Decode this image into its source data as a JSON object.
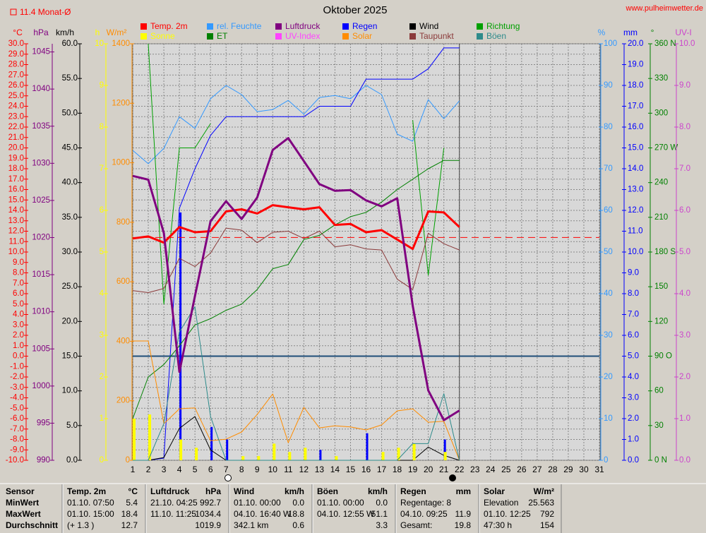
{
  "title": "Oktober 2025",
  "site": "www.pulheimwetter.de",
  "chart_data": {
    "type": "line",
    "average": {
      "value": 11.4,
      "label": "11.4 Monat-Ø",
      "axis": "°C",
      "color": "#ff0000"
    },
    "x": [
      1,
      2,
      3,
      4,
      5,
      6,
      7,
      8,
      9,
      10,
      11,
      12,
      13,
      14,
      15,
      16,
      17,
      18,
      19,
      20,
      21,
      22
    ],
    "xlim": [
      1,
      31
    ],
    "xticks": [
      1,
      2,
      3,
      4,
      5,
      6,
      7,
      8,
      9,
      10,
      11,
      12,
      13,
      14,
      15,
      16,
      17,
      18,
      19,
      20,
      21,
      22,
      23,
      24,
      25,
      26,
      27,
      28,
      29,
      30,
      31
    ],
    "grid": true,
    "frost_line": {
      "value": 0,
      "axis": "°C",
      "color": "#1f4e79"
    },
    "axes": [
      {
        "unit": "°C",
        "color": "#ff0000",
        "ylim": [
          -10,
          30
        ],
        "yticks": [
          {
            "value": -10,
            "label": "-10.0"
          },
          {
            "value": -9,
            "label": "-9.0"
          },
          {
            "value": -8,
            "label": "-8.0"
          },
          {
            "value": -7,
            "label": "-7.0"
          },
          {
            "value": -6,
            "label": "-6.0"
          },
          {
            "value": -5,
            "label": "-5.0"
          },
          {
            "value": -4,
            "label": "-4.0"
          },
          {
            "value": -3,
            "label": "-3.0"
          },
          {
            "value": -2,
            "label": "-2.0"
          },
          {
            "value": -1,
            "label": "-1.0"
          },
          {
            "value": 0,
            "label": "0.0"
          },
          {
            "value": 1,
            "label": "1.0"
          },
          {
            "value": 2,
            "label": "2.0"
          },
          {
            "value": 3,
            "label": "3.0"
          },
          {
            "value": 4,
            "label": "4.0"
          },
          {
            "value": 5,
            "label": "5.0"
          },
          {
            "value": 6,
            "label": "6.0"
          },
          {
            "value": 7,
            "label": "7.0"
          },
          {
            "value": 8,
            "label": "8.0"
          },
          {
            "value": 9,
            "label": "9.0"
          },
          {
            "value": 10,
            "label": "10.0"
          },
          {
            "value": 11,
            "label": "11.0"
          },
          {
            "value": 12,
            "label": "12.0"
          },
          {
            "value": 13,
            "label": "13.0"
          },
          {
            "value": 14,
            "label": "14.0"
          },
          {
            "value": 15,
            "label": "15.0"
          },
          {
            "value": 16,
            "label": "16.0"
          },
          {
            "value": 17,
            "label": "17.0"
          },
          {
            "value": 18,
            "label": "18.0"
          },
          {
            "value": 19,
            "label": "19.0"
          },
          {
            "value": 20,
            "label": "20.0"
          },
          {
            "value": 21,
            "label": "21.0"
          },
          {
            "value": 22,
            "label": "22.0"
          },
          {
            "value": 23,
            "label": "23.0"
          },
          {
            "value": 24,
            "label": "24.0"
          },
          {
            "value": 25,
            "label": "25.0"
          },
          {
            "value": 26,
            "label": "26.0"
          },
          {
            "value": 27,
            "label": "27.0"
          },
          {
            "value": 28,
            "label": "28.0"
          },
          {
            "value": 29,
            "label": "29.0"
          },
          {
            "value": 30,
            "label": "30.0"
          }
        ]
      },
      {
        "unit": "hPa",
        "color": "#800080",
        "ylim": [
          990,
          1046.1
        ],
        "yticks": [
          990,
          995,
          1000,
          1005,
          1010,
          1015,
          1020,
          1025,
          1030,
          1035,
          1040,
          1045
        ]
      },
      {
        "unit": "km/h",
        "color": "#000000",
        "ylim": [
          0,
          60
        ],
        "yticks": [
          {
            "value": 0,
            "label": "0.0"
          },
          {
            "value": 5,
            "label": "5.0"
          },
          {
            "value": 10,
            "label": "10.0"
          },
          {
            "value": 15,
            "label": "15.0"
          },
          {
            "value": 20,
            "label": "20.0"
          },
          {
            "value": 25,
            "label": "25.0"
          },
          {
            "value": 30,
            "label": "30.0"
          },
          {
            "value": 35,
            "label": "35.0"
          },
          {
            "value": 40,
            "label": "40.0"
          },
          {
            "value": 45,
            "label": "45.0"
          },
          {
            "value": 50,
            "label": "50.0"
          },
          {
            "value": 55,
            "label": "55.0"
          },
          {
            "value": 60,
            "label": "60.0"
          }
        ]
      },
      {
        "unit": "h",
        "color": "#ffff00",
        "ylim": [
          0,
          10
        ],
        "yticks": [
          0,
          1,
          2,
          3,
          4,
          5,
          6,
          7,
          8,
          9,
          10
        ]
      },
      {
        "unit": "W/m²",
        "color": "#ff8c00",
        "ylim": [
          0,
          1400
        ],
        "yticks": [
          0,
          200,
          400,
          600,
          800,
          1000,
          1200,
          1400
        ]
      },
      {
        "unit": "%",
        "color": "#3399ff",
        "ylim": [
          0,
          100
        ],
        "yticks": [
          0,
          10,
          20,
          30,
          40,
          50,
          60,
          70,
          80,
          90,
          100
        ]
      },
      {
        "unit": "mm",
        "color": "#0000ff",
        "ylim": [
          0,
          20
        ],
        "yticks": [
          {
            "value": 0,
            "label": "0.0"
          },
          {
            "value": 1,
            "label": "1.0"
          },
          {
            "value": 2,
            "label": "2.0"
          },
          {
            "value": 3,
            "label": "3.0"
          },
          {
            "value": 4,
            "label": "4.0"
          },
          {
            "value": 5,
            "label": "5.0"
          },
          {
            "value": 6,
            "label": "6.0"
          },
          {
            "value": 7,
            "label": "7.0"
          },
          {
            "value": 8,
            "label": "8.0"
          },
          {
            "value": 9,
            "label": "9.0"
          },
          {
            "value": 10,
            "label": "10.0"
          },
          {
            "value": 11,
            "label": "11.0"
          },
          {
            "value": 12,
            "label": "12.0"
          },
          {
            "value": 13,
            "label": "13.0"
          },
          {
            "value": 14,
            "label": "14.0"
          },
          {
            "value": 15,
            "label": "15.0"
          },
          {
            "value": 16,
            "label": "16.0"
          },
          {
            "value": 17,
            "label": "17.0"
          },
          {
            "value": 18,
            "label": "18.0"
          },
          {
            "value": 19,
            "label": "19.0"
          },
          {
            "value": 20,
            "label": "20.0"
          }
        ]
      },
      {
        "unit": "°",
        "color": "#008000",
        "ylim": [
          0,
          360
        ],
        "yticks": [
          {
            "value": 0,
            "label": "0   N"
          },
          30,
          60,
          {
            "value": 90,
            "label": "90  O"
          },
          120,
          150,
          {
            "value": 180,
            "label": "180 S"
          },
          210,
          240,
          {
            "value": 270,
            "label": "270 W"
          },
          300,
          330,
          {
            "value": 360,
            "label": "360 N"
          }
        ]
      },
      {
        "unit": "UV-I",
        "color": "#cc44cc",
        "ylim": [
          0,
          10
        ],
        "yticks": [
          {
            "value": 0,
            "label": "0.0"
          },
          {
            "value": 1,
            "label": "1.0"
          },
          {
            "value": 2,
            "label": "2.0"
          },
          {
            "value": 3,
            "label": "3.0"
          },
          {
            "value": 4,
            "label": "4.0"
          },
          {
            "value": 5,
            "label": "5.0"
          },
          {
            "value": 6,
            "label": "6.0"
          },
          {
            "value": 7,
            "label": "7.0"
          },
          {
            "value": 8,
            "label": "8.0"
          },
          {
            "value": 9,
            "label": "9.0"
          },
          {
            "value": 10,
            "label": "10.0"
          }
        ]
      }
    ],
    "series": [
      {
        "name": "Temp. 2m",
        "color": "#ff0000",
        "axis": "°C",
        "width": 3,
        "values": [
          11.3,
          11.5,
          10.9,
          12.4,
          11.9,
          12.0,
          13.9,
          14.1,
          13.7,
          14.5,
          14.3,
          14.1,
          14.3,
          12.6,
          12.7,
          11.9,
          12.1,
          11.2,
          10.3,
          13.9,
          13.8,
          12.4
        ]
      },
      {
        "name": "rel. Feuchte",
        "color": "#3399ff",
        "axis": "%",
        "values": [
          74.4,
          71.2,
          74.9,
          82.5,
          79.7,
          86.8,
          90.0,
          87.8,
          83.7,
          84.2,
          86.4,
          83.1,
          87.1,
          87.6,
          86.8,
          90.0,
          87.8,
          78.3,
          76.6,
          86.6,
          82.0,
          86.3
        ]
      },
      {
        "name": "Luftdruck",
        "color": "#800080",
        "axis": "hPa",
        "width": 3,
        "values": [
          1028.3,
          1027.8,
          1020.6,
          1001.9,
          1012.1,
          1022.2,
          1024.9,
          1022.5,
          1025.4,
          1031.8,
          1033.4,
          1030.3,
          1027.2,
          1026.3,
          1026.4,
          1025.0,
          1024.2,
          1025.3,
          1010.8,
          999.4,
          995.4,
          996.7
        ]
      },
      {
        "name": "Regen",
        "color": "#0000ff",
        "axis": "mm",
        "values": [
          0,
          0,
          0.1,
          12.1,
          14.0,
          15.6,
          16.5,
          16.5,
          16.5,
          16.5,
          16.5,
          16.5,
          17.0,
          17.0,
          17.0,
          18.3,
          18.3,
          18.3,
          18.3,
          18.8,
          19.8,
          19.8
        ],
        "daily": [
          0,
          0,
          0,
          11.9,
          0,
          1.6,
          1.0,
          0,
          0,
          0,
          0,
          0,
          0.5,
          0,
          0,
          1.3,
          0,
          0,
          0,
          0,
          1.0,
          null
        ]
      },
      {
        "name": "Wind",
        "color": "#000000",
        "axis": "km/h",
        "values": [
          0,
          0,
          0.4,
          4.6,
          6.3,
          1.5,
          0,
          0,
          0,
          0,
          0,
          0,
          0,
          0,
          0,
          0,
          0,
          0,
          0,
          1.9,
          0.7,
          0
        ]
      },
      {
        "name": "Richtung",
        "color": "#00a000",
        "axis": "°",
        "values": [
          null,
          360,
          135,
          270,
          270,
          291,
          null,
          null,
          null,
          null,
          null,
          null,
          null,
          null,
          null,
          null,
          null,
          null,
          294,
          160,
          270,
          null
        ]
      },
      {
        "name": "Sonne",
        "color": "#ffff00",
        "axis": "h",
        "kind": "bar",
        "values": [
          1.0,
          1.1,
          0,
          0.5,
          0.3,
          0,
          0,
          0.1,
          0.1,
          0.4,
          0.2,
          0.3,
          0,
          0.1,
          0,
          0,
          0.2,
          0.3,
          0.4,
          0,
          0.2,
          null
        ]
      },
      {
        "name": "ET",
        "color": "#008000",
        "axis": "mm",
        "values": [
          2.0,
          4.0,
          4.6,
          5.5,
          6.5,
          6.8,
          7.2,
          7.5,
          8.2,
          9.2,
          9.4,
          10.6,
          10.8,
          11.3,
          11.7,
          11.9,
          12.4,
          13.0,
          13.5,
          14.0,
          14.4,
          14.4
        ]
      },
      {
        "name": "UV-Index",
        "color": "#ff44ff",
        "axis": "UV-I",
        "values": [
          null,
          null,
          null,
          null,
          null,
          null,
          null,
          null,
          null,
          null,
          null,
          null,
          null,
          null,
          null,
          null,
          null,
          null,
          null,
          null,
          null,
          null
        ]
      },
      {
        "name": "Solar",
        "color": "#ff8c00",
        "axis": "W/m²",
        "values": [
          401,
          401,
          123,
          173,
          176,
          66,
          71,
          95,
          154,
          223,
          59,
          178,
          109,
          116,
          112,
          102,
          119,
          166,
          173,
          128,
          131,
          0
        ]
      },
      {
        "name": "Taupunkt",
        "color": "#8b3a3a",
        "axis": "°C",
        "values": [
          6.3,
          6.1,
          6.5,
          9.4,
          8.6,
          9.9,
          12.3,
          12.1,
          10.9,
          11.9,
          12.0,
          11.3,
          12.0,
          10.5,
          10.7,
          10.3,
          10.2,
          7.4,
          6.4,
          11.8,
          10.8,
          10.2
        ]
      },
      {
        "name": "Böen",
        "color": "#2e8b8b",
        "axis": "km/h",
        "values": [
          0,
          0,
          5.3,
          18.5,
          22.1,
          6.3,
          0,
          0,
          0,
          0,
          0,
          0,
          0,
          0,
          0,
          0,
          0,
          0,
          2.4,
          2.4,
          9.6,
          0
        ]
      }
    ]
  },
  "table": {
    "header": "Sensor",
    "row_labels": [
      "MinWert",
      "MaxWert",
      "Durchschnitt"
    ],
    "columns": [
      {
        "name": "Temp. 2m",
        "unit": "°C",
        "cells": [
          {
            "text": "01.10.  07:50",
            "value": "5.4"
          },
          {
            "text": "01.10.  15:00",
            "value": "18.4"
          },
          {
            "text": "(+ 1.3 )",
            "value": "12.7"
          }
        ]
      },
      {
        "name": "Luftdruck",
        "unit": "hPa",
        "cells": [
          {
            "text": "21.10.  04:25",
            "value": "992.7"
          },
          {
            "text": "11.10.  11:25",
            "value": "1034.4"
          },
          {
            "value": "1019.9"
          }
        ]
      },
      {
        "name": "Wind",
        "unit": "km/h",
        "cells": [
          {
            "text": "01.10.  00:00",
            "value": "0.0"
          },
          {
            "text": "04.10.  16:40 W",
            "value": "18.8"
          },
          {
            "text": "342.1 km",
            "value": "0.6"
          }
        ]
      },
      {
        "name": "Böen",
        "unit": "km/h",
        "cells": [
          {
            "text": "01.10.  00:00",
            "value": "0.0"
          },
          {
            "text": "04.10.  12:55  W",
            "value": "51.1"
          },
          {
            "value": "3.3"
          }
        ]
      },
      {
        "name": "Regen",
        "unit": "mm",
        "cells": [
          {
            "text": "Regentage: 8"
          },
          {
            "text": "04.10.  09:25",
            "value": "11.9"
          },
          {
            "text": "Gesamt:",
            "value": "19.8"
          }
        ]
      },
      {
        "name": "Solar",
        "unit": "W/m²",
        "cells": [
          {
            "text": "Elevation",
            "value": "25.563"
          },
          {
            "text": "01.10.  12:25",
            "value": "792"
          },
          {
            "text": "47:30 h",
            "value": "154"
          }
        ]
      }
    ]
  }
}
